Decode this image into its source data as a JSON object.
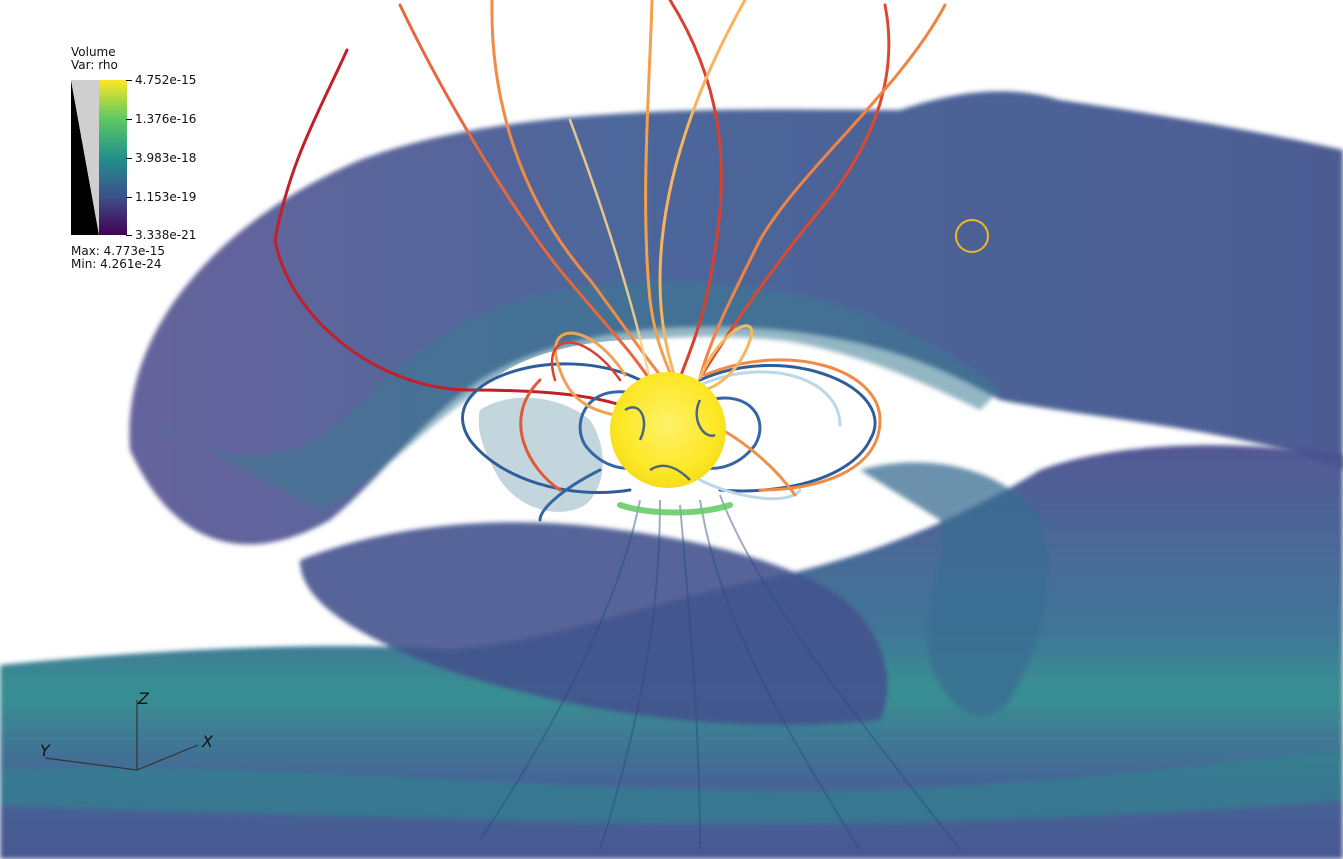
{
  "legend": {
    "title": "Volume",
    "variable": "Var: rho",
    "ticks": [
      "4.752e-15",
      "1.376e-16",
      "3.983e-18",
      "1.153e-19",
      "3.338e-21"
    ],
    "max_label": "Max:  4.773e-15",
    "min_label": "Min:  4.261e-24",
    "colormap": [
      "#fde725",
      "#5ec962",
      "#21918c",
      "#3b528b",
      "#440154"
    ]
  },
  "axes": {
    "x": "X",
    "y": "Y",
    "z": "Z"
  },
  "colors": {
    "background": "#ffffff",
    "volume_dark": "#3f4a89",
    "volume_mid": "#38688f",
    "volume_teal": "#2a8a8c",
    "star": "#fde725",
    "field_line_hot": "#c0202a",
    "field_line_warm": "#f08a45",
    "field_line_cool": "#bcd8e8",
    "field_line_blue": "#2e5a98",
    "marker": "#f0b623"
  }
}
